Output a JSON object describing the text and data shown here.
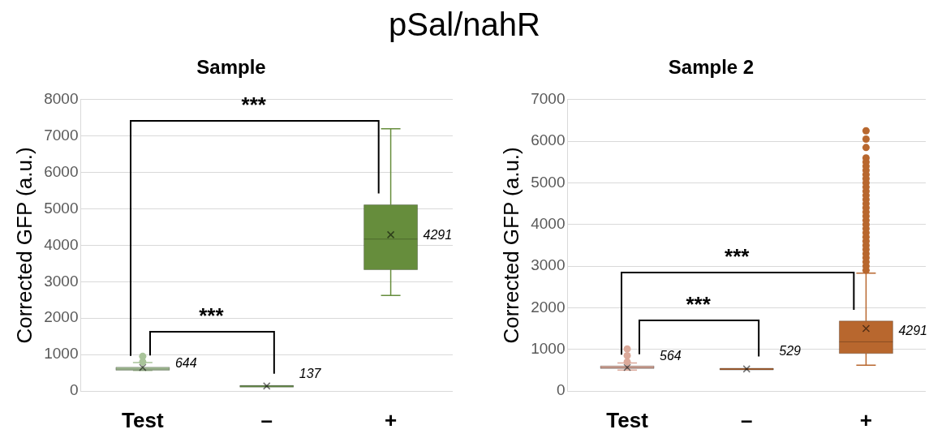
{
  "chart_data": [
    {
      "type": "box",
      "title": "Sample",
      "ylabel": "Corrected GFP (a.u.)",
      "categories": [
        "Test",
        "–",
        "+"
      ],
      "boxes": [
        {
          "low": 560,
          "q1": 570,
          "median": 600,
          "q3": 650,
          "high": 780,
          "mean": 644,
          "outliers": [
            800,
            950
          ]
        },
        {
          "low": 125,
          "q1": 125,
          "median": 137,
          "q3": 150,
          "high": 150,
          "mean": 137
        },
        {
          "low": 2620,
          "q1": 3330,
          "median": 4170,
          "q3": 5110,
          "high": 7200,
          "mean": 4290
        }
      ],
      "colors": [
        "#a9c49a",
        "#6e9a4c",
        "#668d3c"
      ],
      "ylim": [
        0,
        8000
      ],
      "yticks": [
        0,
        1000,
        2000,
        3000,
        4000,
        5000,
        6000,
        7000,
        8000
      ],
      "grid": "y",
      "annotations": [
        "pSal/nahR",
        "***",
        "***",
        "644",
        "137",
        "4291"
      ]
    },
    {
      "type": "box",
      "title": "Sample 2",
      "ylabel": "Corrected GFP (a.u.)",
      "categories": [
        "Test",
        "–",
        "+"
      ],
      "boxes": [
        {
          "low": 500,
          "q1": 540,
          "median": 560,
          "q3": 600,
          "high": 670,
          "mean": 564,
          "outliers": [
            700,
            850,
            1010
          ]
        },
        {
          "low": 505,
          "q1": 505,
          "median": 525,
          "q3": 545,
          "high": 545,
          "mean": 529
        },
        {
          "low": 620,
          "q1": 900,
          "median": 1180,
          "q3": 1680,
          "high": 2830,
          "mean": 1500,
          "outliers": [
            2900,
            3000,
            3100,
            3200,
            3300,
            3400,
            3500,
            3600,
            3700,
            3800,
            3900,
            4000,
            4100,
            4200,
            4300,
            4400,
            4500,
            4600,
            4700,
            4800,
            4900,
            5000,
            5100,
            5200,
            5300,
            5400,
            5500,
            5600,
            5850,
            6050,
            6250
          ]
        }
      ],
      "colors": [
        "#dba99a",
        "#c0703a",
        "#b8672e"
      ],
      "ylim": [
        0,
        7000
      ],
      "yticks": [
        0,
        1000,
        2000,
        3000,
        4000,
        5000,
        6000,
        7000
      ],
      "grid": "y",
      "annotations": [
        "***",
        "***",
        "564",
        "529",
        "4291"
      ]
    }
  ]
}
